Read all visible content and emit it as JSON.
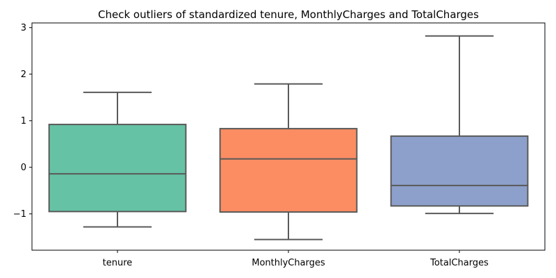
{
  "chart_data": {
    "type": "box",
    "title": "Check outliers of standardized tenure, MonthlyCharges and TotalCharges",
    "xlabel": "",
    "ylabel": "",
    "ylim": [
      -1.78,
      3.1
    ],
    "yticks": [
      {
        "value": 3,
        "label": "3"
      },
      {
        "value": 2,
        "label": "2"
      },
      {
        "value": 1,
        "label": "1"
      },
      {
        "value": 0,
        "label": "0"
      },
      {
        "value": -1,
        "label": "−1"
      }
    ],
    "categories": [
      "tenure",
      "MonthlyCharges",
      "TotalCharges"
    ],
    "series": [
      {
        "color": "#66c2a5",
        "whisker_low": -1.28,
        "q1": -0.95,
        "median": -0.14,
        "q3": 0.92,
        "whisker_high": 1.61
      },
      {
        "color": "#fc8d62",
        "whisker_low": -1.55,
        "q1": -0.96,
        "median": 0.18,
        "q3": 0.83,
        "whisker_high": 1.79
      },
      {
        "color": "#8da0cb",
        "whisker_low": -0.99,
        "q1": -0.83,
        "median": -0.39,
        "q3": 0.67,
        "whisker_high": 2.82
      }
    ],
    "grid": false,
    "legend": "none"
  }
}
